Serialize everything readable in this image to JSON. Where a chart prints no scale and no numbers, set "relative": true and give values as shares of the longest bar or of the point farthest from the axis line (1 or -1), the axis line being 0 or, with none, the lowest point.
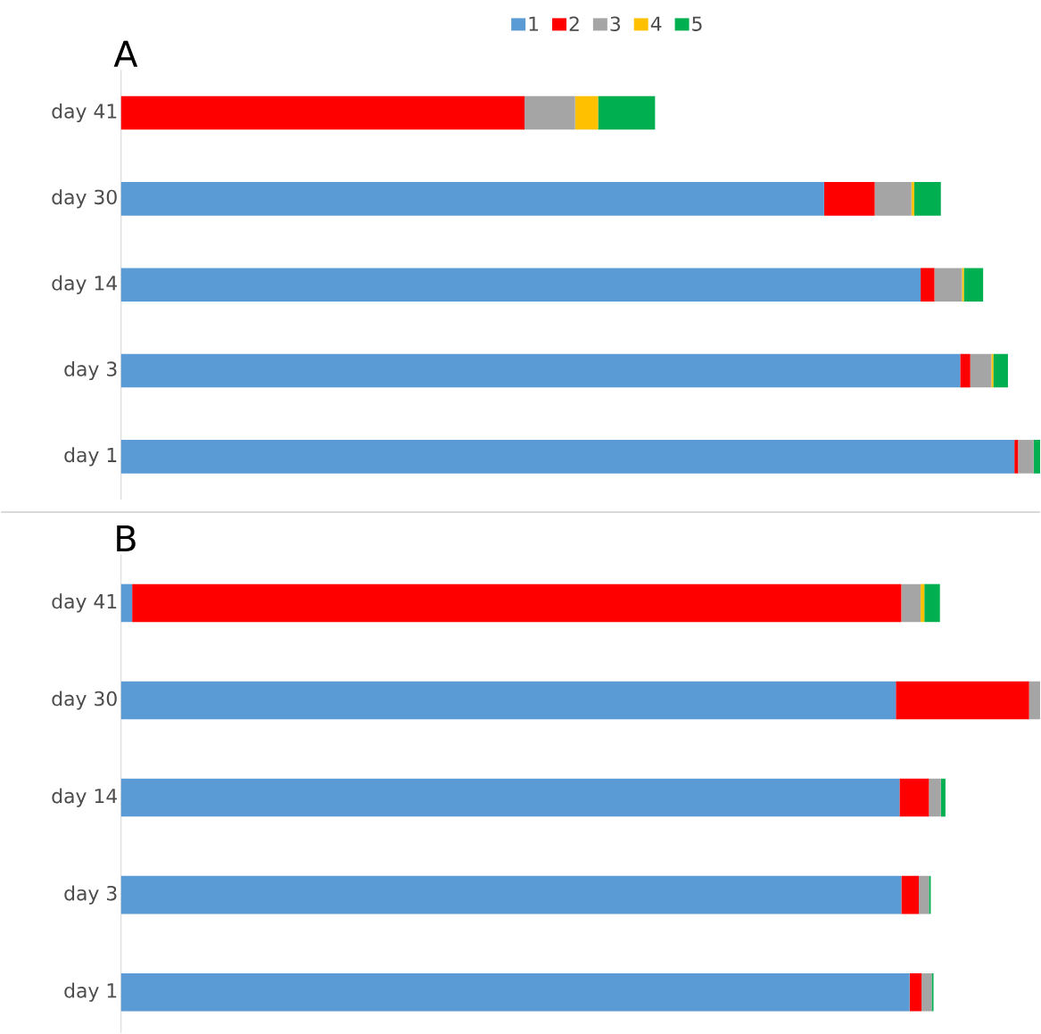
{
  "chart_data": [
    {
      "type": "bar",
      "title": "A",
      "orientation": "horizontal",
      "stacked": true,
      "relative": true,
      "legend": "top",
      "categories": [
        "day 41",
        "day 30",
        "day 14",
        "day 3",
        "day 1"
      ],
      "series": [
        {
          "name": "1",
          "color": "#5b9bd5",
          "values": [
            0,
            0.765,
            0.87,
            0.913,
            0.972
          ]
        },
        {
          "name": "2",
          "color": "#ff0000",
          "values": [
            0.439,
            0.055,
            0.015,
            0.011,
            0.004
          ]
        },
        {
          "name": "3",
          "color": "#a5a5a5",
          "values": [
            0.055,
            0.04,
            0.03,
            0.023,
            0.017
          ]
        },
        {
          "name": "4",
          "color": "#ffc000",
          "values": [
            0.025,
            0.003,
            0.002,
            0.002,
            0
          ]
        },
        {
          "name": "5",
          "color": "#00b050",
          "values": [
            0.062,
            0.029,
            0.021,
            0.016,
            0.007
          ]
        }
      ]
    },
    {
      "type": "bar",
      "title": "B",
      "orientation": "horizontal",
      "stacked": true,
      "relative": true,
      "categories": [
        "day 41",
        "day 30",
        "day 14",
        "day 3",
        "day 1"
      ],
      "series": [
        {
          "color": "#5b9bd5",
          "values": [
            0.012,
            0.843,
            0.847,
            0.849,
            0.858
          ]
        },
        {
          "color": "#ff0000",
          "values": [
            0.837,
            0.145,
            0.032,
            0.019,
            0.013
          ]
        },
        {
          "color": "#a5a5a5",
          "values": [
            0.021,
            0.012,
            0.013,
            0.011,
            0.011
          ]
        },
        {
          "color": "#ffc000",
          "values": [
            0.004,
            0,
            0,
            0,
            0
          ]
        },
        {
          "color": "#00b050",
          "values": [
            0.017,
            0,
            0.005,
            0.002,
            0.002
          ]
        }
      ]
    }
  ]
}
